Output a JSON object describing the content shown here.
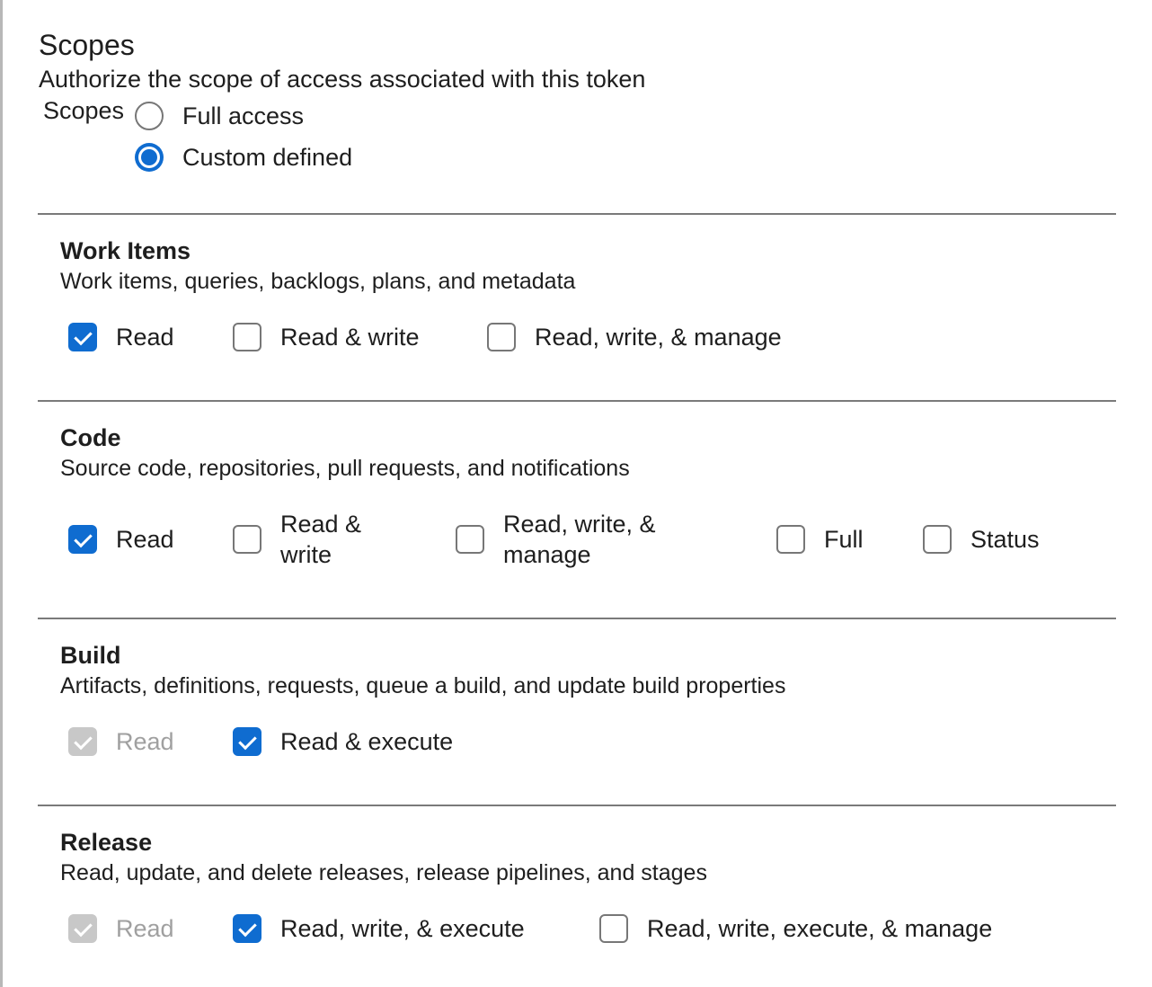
{
  "header": {
    "title": "Scopes",
    "subtitle": "Authorize the scope of access associated with this token"
  },
  "scopes_radio": {
    "label": "Scopes",
    "options": [
      {
        "label": "Full access",
        "selected": false
      },
      {
        "label": "Custom defined",
        "selected": true
      }
    ]
  },
  "accent_color": "#0f6cd0",
  "sections": [
    {
      "title": "Work Items",
      "description": "Work items, queries, backlogs, plans, and metadata",
      "options": [
        {
          "label": "Read",
          "checked": true
        },
        {
          "label": "Read & write",
          "checked": false
        },
        {
          "label": "Read, write, & manage",
          "checked": false
        }
      ]
    },
    {
      "title": "Code",
      "description": "Source code, repositories, pull requests, and notifications",
      "options": [
        {
          "label": "Read",
          "checked": true
        },
        {
          "label": "Read & write",
          "checked": false
        },
        {
          "label": "Read, write, & manage",
          "checked": false
        },
        {
          "label": "Full",
          "checked": false
        },
        {
          "label": "Status",
          "checked": false
        }
      ]
    },
    {
      "title": "Build",
      "description": "Artifacts, definitions, requests, queue a build, and update build properties",
      "options": [
        {
          "label": "Read",
          "checked": true,
          "disabled": true
        },
        {
          "label": "Read & execute",
          "checked": true
        }
      ]
    },
    {
      "title": "Release",
      "description": "Read, update, and delete releases, release pipelines, and stages",
      "options": [
        {
          "label": "Read",
          "checked": true,
          "disabled": true
        },
        {
          "label": "Read, write, & execute",
          "checked": true
        },
        {
          "label": "Read, write, execute, & manage",
          "checked": false
        }
      ]
    }
  ]
}
